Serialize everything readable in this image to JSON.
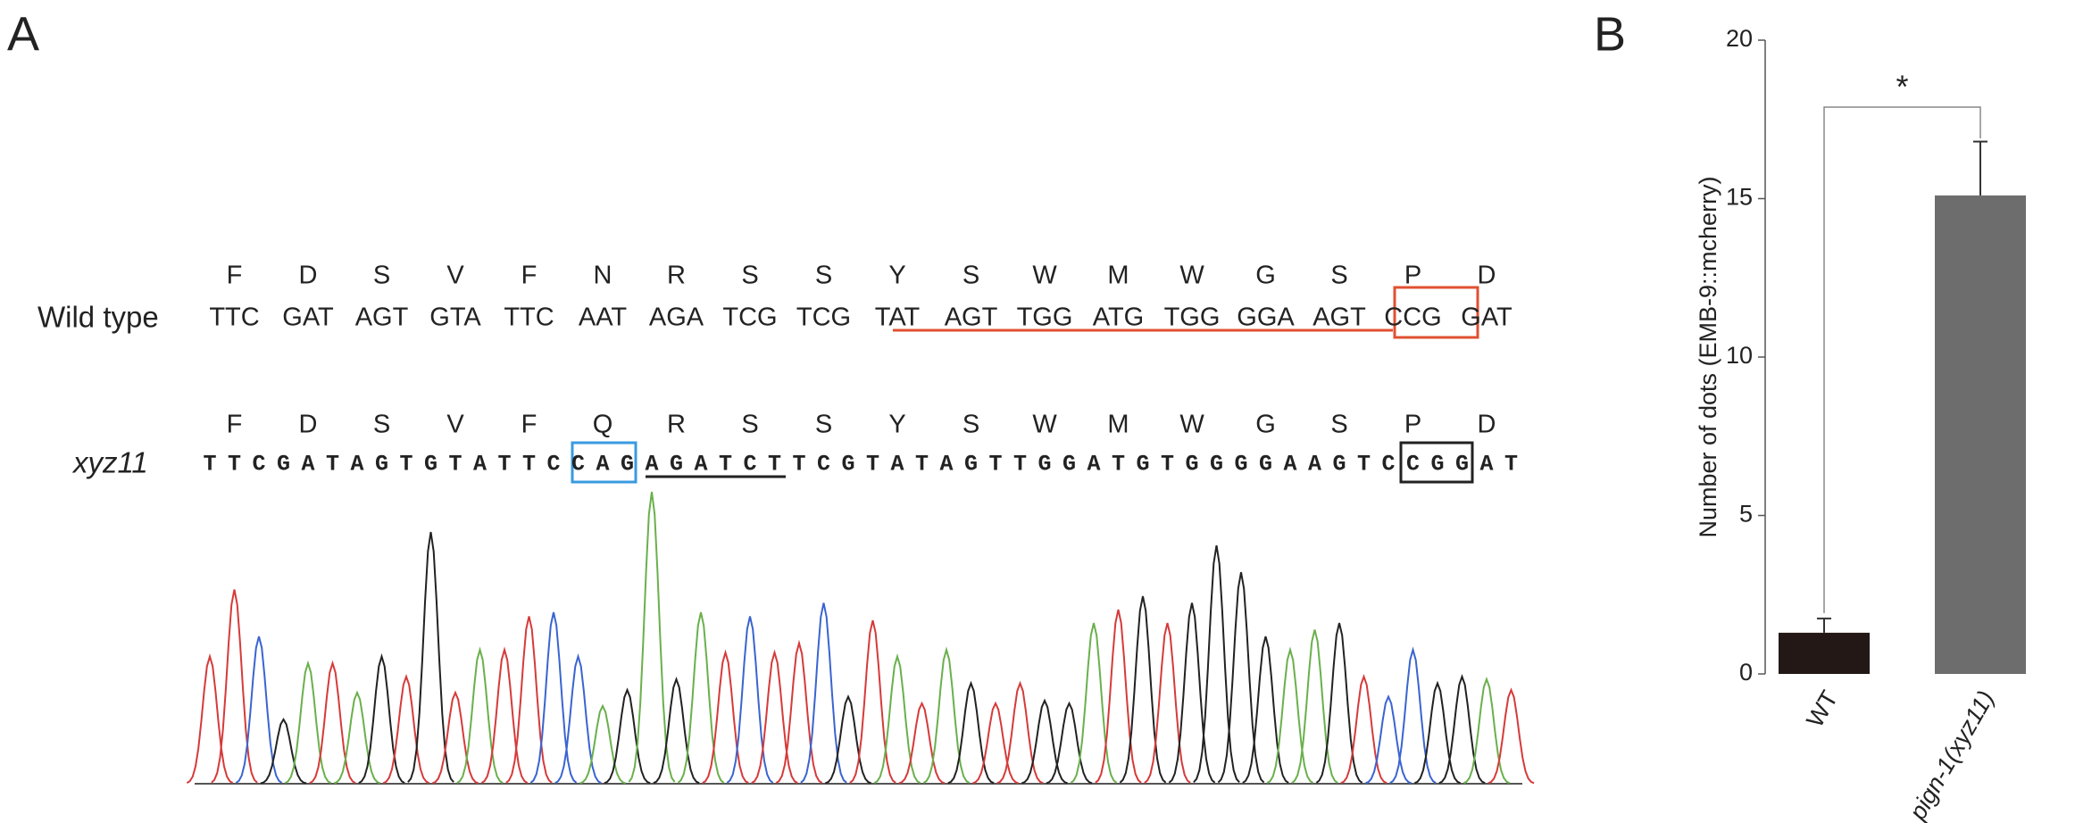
{
  "panel_a": {
    "label": "A",
    "wild_type": {
      "name": "Wild type",
      "amino_acids": [
        "F",
        "D",
        "S",
        "V",
        "F",
        "N",
        "R",
        "S",
        "S",
        "Y",
        "S",
        "W",
        "M",
        "W",
        "G",
        "S",
        "P",
        "D"
      ],
      "codons": [
        "TTC",
        "GAT",
        "AGT",
        "GTA",
        "TTC",
        "AAT",
        "AGA",
        "TCG",
        "TCG",
        "TAT",
        "AGT",
        "TGG",
        "ATG",
        "TGG",
        "GGA",
        "AGT",
        "CCG",
        "GAT"
      ]
    },
    "mutant": {
      "name": "xyz11",
      "amino_acids": [
        "F",
        "D",
        "S",
        "V",
        "F",
        "Q",
        "R",
        "S",
        "S",
        "Y",
        "S",
        "W",
        "M",
        "W",
        "G",
        "S",
        "P",
        "D"
      ],
      "bases": [
        "T",
        "T",
        "C",
        "G",
        "A",
        "T",
        "A",
        "G",
        "T",
        "G",
        "T",
        "A",
        "T",
        "T",
        "C",
        "C",
        "A",
        "G",
        "A",
        "G",
        "A",
        "T",
        "C",
        "T",
        "T",
        "C",
        "G",
        "T",
        "A",
        "T",
        "A",
        "G",
        "T",
        "T",
        "G",
        "G",
        "A",
        "T",
        "G",
        "T",
        "G",
        "G",
        "G",
        "G",
        "A",
        "A",
        "G",
        "T",
        "C",
        "C",
        "G",
        "G",
        "A",
        "T"
      ]
    },
    "base_colors": {
      "A": "#6ab04c",
      "C": "#3a64d0",
      "G": "#222222",
      "T": "#d63a3a"
    }
  },
  "chart_data": [
    {
      "type": "chromatogram",
      "values": [
        95,
        145,
        110,
        48,
        90,
        90,
        68,
        95,
        80,
        188,
        68,
        100,
        100,
        125,
        128,
        95,
        58,
        70,
        218,
        78,
        128,
        98,
        125,
        98,
        105,
        135,
        65,
        122,
        95,
        60,
        100,
        75,
        60,
        75,
        62,
        60,
        120,
        130,
        140,
        120,
        135,
        178,
        158,
        110,
        100,
        115,
        120,
        80,
        65,
        100,
        75,
        80,
        78,
        70
      ],
      "ylim": [
        0,
        230
      ]
    },
    {
      "type": "bar",
      "label": "B",
      "ylabel": "Number of dots (EMB-9::mcherry)",
      "categories": [
        "WT",
        "pign-1(xyz11)"
      ],
      "values": [
        1.3,
        15.1
      ],
      "errors": [
        0.45,
        1.7
      ],
      "colors": [
        "#231815",
        "#6d6d6d"
      ],
      "ylim": [
        0,
        20
      ],
      "yticks": [
        0,
        5,
        10,
        15,
        20
      ],
      "annotation": "*"
    }
  ]
}
